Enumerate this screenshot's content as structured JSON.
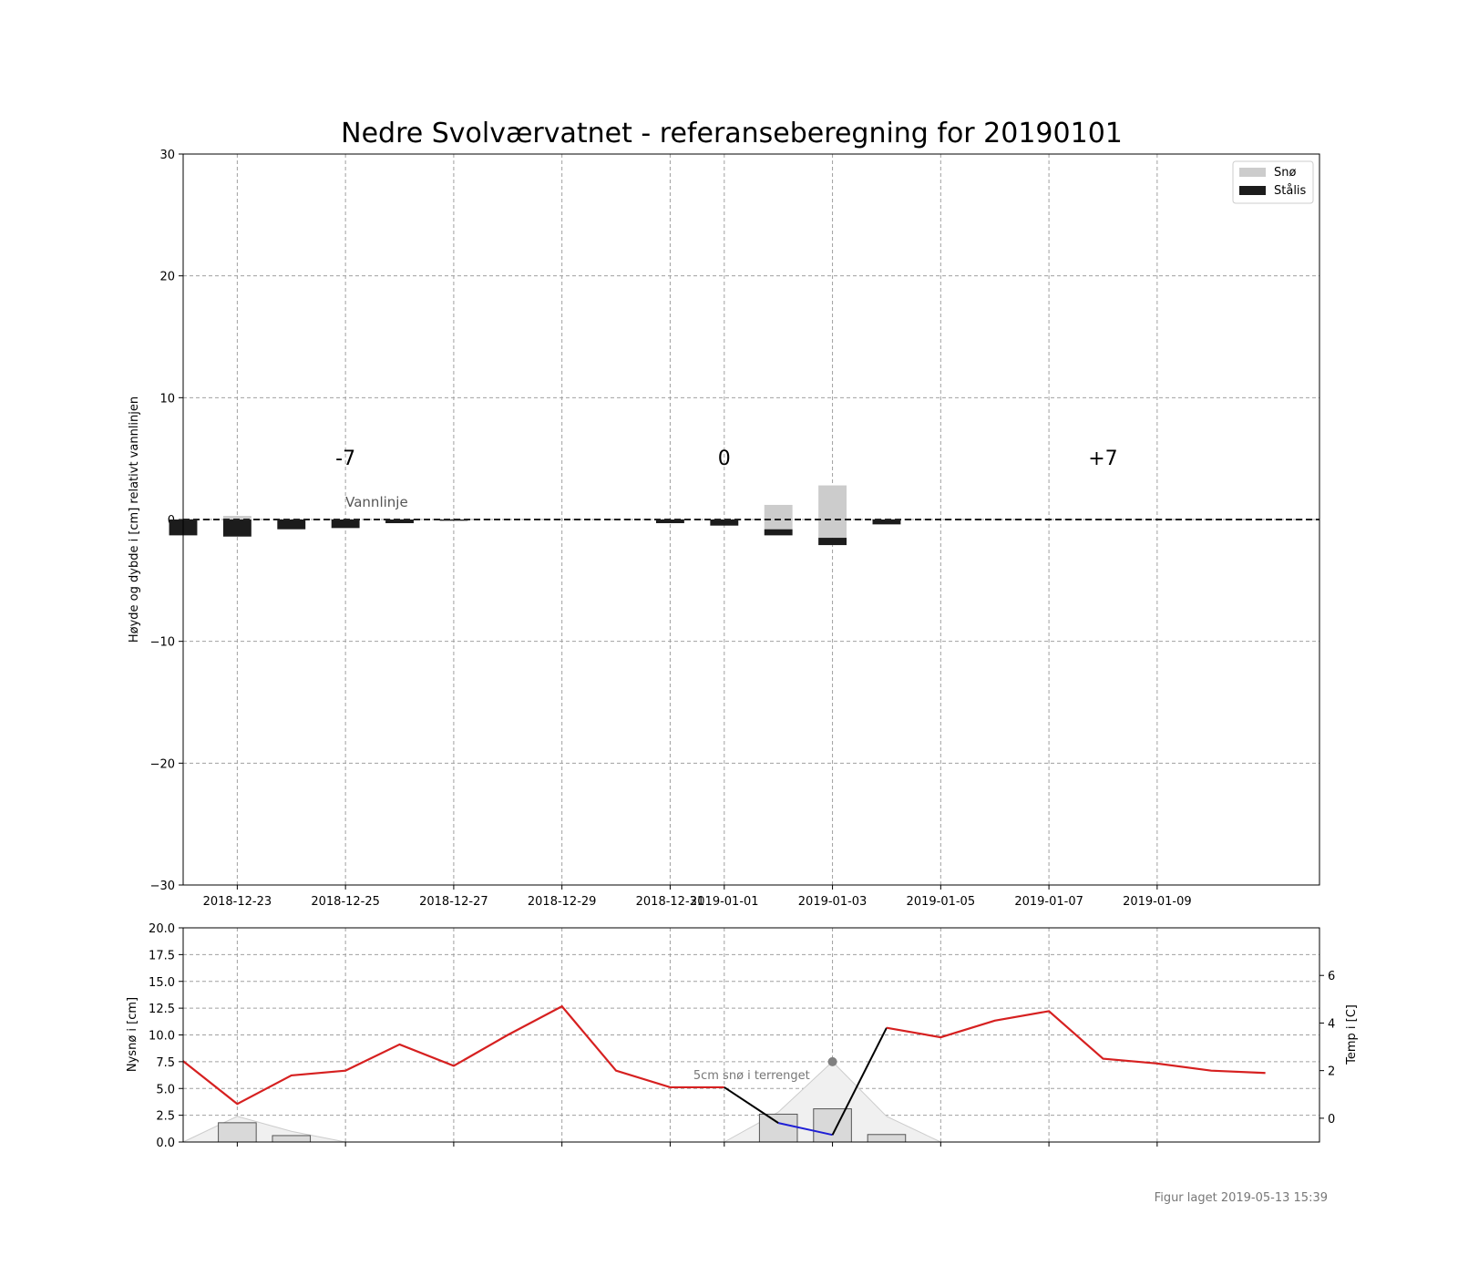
{
  "title": "Nedre Svolværvatnet - referanseberegning for 20190101",
  "footer": "Figur laget 2019-05-13 15:39",
  "colors": {
    "snow": "#cccccc",
    "ice": "#1c1c1c",
    "temp_line": "#d62020",
    "snow_line_black": "#000000",
    "snow_line_blue": "#1f1fd6",
    "grid": "#a0a0a0",
    "annotation": "#777777"
  },
  "chart_data": [
    {
      "type": "bar",
      "ylabel": "Høyde og dybde i [cm] relativt vannlinjen",
      "ylim": [
        -30,
        30
      ],
      "yticks": [
        "30",
        "20",
        "10",
        "0",
        "−10",
        "−20",
        "−30"
      ],
      "ytick_values": [
        30,
        20,
        10,
        0,
        -10,
        -20,
        -30
      ],
      "xlim_days": "2018-12-22 .. 2019-01-11",
      "xtick_labels": [
        "2018-12-23",
        "2018-12-25",
        "2018-12-27",
        "2018-12-29",
        "2018-12-31",
        "2019-01-01",
        "2019-01-03",
        "2019-01-05",
        "2019-01-07",
        "2019-01-09"
      ],
      "xtick_dates": [
        "2018-12-23",
        "2018-12-25",
        "2018-12-27",
        "2018-12-29",
        "2018-12-31",
        "2019-01-01",
        "2019-01-03",
        "2019-01-05",
        "2019-01-07",
        "2019-01-09"
      ],
      "legend": {
        "placement": "top-right",
        "entries": [
          {
            "name": "Snø",
            "color": "#cccccc"
          },
          {
            "name": "Stålis",
            "color": "#1c1c1c"
          }
        ]
      },
      "water_line_label": "Vannlinje",
      "day_markers": [
        {
          "label": "-7",
          "date": "2018-12-25"
        },
        {
          "label": "0",
          "date": "2019-01-01"
        },
        {
          "label": "+7",
          "date": "2019-01-08"
        }
      ],
      "bars": [
        {
          "date": "2018-12-22",
          "snow": 0.0,
          "ice": 1.3
        },
        {
          "date": "2018-12-23",
          "snow": 0.3,
          "ice": 1.4
        },
        {
          "date": "2018-12-24",
          "snow": 0.0,
          "ice": 0.8
        },
        {
          "date": "2018-12-25",
          "snow": 0.0,
          "ice": 0.7
        },
        {
          "date": "2018-12-26",
          "snow": 0.0,
          "ice": 0.3
        },
        {
          "date": "2018-12-27",
          "snow": 0.0,
          "ice": 0.1
        },
        {
          "date": "2018-12-31",
          "snow": 0.0,
          "ice": 0.3
        },
        {
          "date": "2019-01-01",
          "snow": 0.0,
          "ice": 0.5
        },
        {
          "date": "2019-01-02",
          "snow": 2.0,
          "ice": 0.5,
          "ice_top": -0.8
        },
        {
          "date": "2019-01-03",
          "snow": 4.3,
          "ice": 0.6,
          "ice_top": -1.5
        },
        {
          "date": "2019-01-04",
          "snow": 0.0,
          "ice": 0.4
        }
      ]
    },
    {
      "type": "line",
      "ylabel": "Nysnø i [cm]",
      "ylabel_right": "Temp i [C]",
      "ylim": [
        0,
        20
      ],
      "yticks": [
        "20.0",
        "17.5",
        "15.0",
        "12.5",
        "10.0",
        "7.5",
        "5.0",
        "2.5",
        "0.0"
      ],
      "ytick_values": [
        20,
        17.5,
        15,
        12.5,
        10,
        7.5,
        5,
        2.5,
        0
      ],
      "ylim_right": [
        -1,
        8
      ],
      "yticks_right": [
        "6",
        "4",
        "2",
        "0"
      ],
      "ytick_values_right": [
        6,
        4,
        2,
        0
      ],
      "annotation": {
        "text": "5cm snø i terrenget",
        "date": "2019-01-03",
        "value": 7.5
      },
      "new_snow_bars": [
        {
          "date": "2018-12-23",
          "value": 1.8
        },
        {
          "date": "2018-12-24",
          "value": 0.6
        },
        {
          "date": "2019-01-02",
          "value": 2.6
        },
        {
          "date": "2019-01-03",
          "value": 3.1
        },
        {
          "date": "2019-01-04",
          "value": 0.7
        }
      ],
      "snow_depth_area": [
        {
          "date": "2018-12-22",
          "value": 0.0
        },
        {
          "date": "2018-12-23",
          "value": 2.4
        },
        {
          "date": "2018-12-24",
          "value": 1.0
        },
        {
          "date": "2018-12-25",
          "value": 0.0
        },
        {
          "date": "2019-01-01",
          "value": 0.0
        },
        {
          "date": "2019-01-02",
          "value": 2.8
        },
        {
          "date": "2019-01-03",
          "value": 7.5
        },
        {
          "date": "2019-01-04",
          "value": 2.4
        },
        {
          "date": "2019-01-05",
          "value": 0.0
        }
      ],
      "series": [
        {
          "name": "Temp",
          "axis": "right",
          "points": [
            {
              "date": "2018-12-22",
              "value": 2.4
            },
            {
              "date": "2018-12-23",
              "value": 0.6
            },
            {
              "date": "2018-12-24",
              "value": 1.8
            },
            {
              "date": "2018-12-25",
              "value": 2.0
            },
            {
              "date": "2018-12-26",
              "value": 3.1
            },
            {
              "date": "2018-12-27",
              "value": 2.2
            },
            {
              "date": "2018-12-28",
              "value": 3.5
            },
            {
              "date": "2018-12-29",
              "value": 4.7
            },
            {
              "date": "2018-12-30",
              "value": 2.0
            },
            {
              "date": "2018-12-31",
              "value": 1.3
            },
            {
              "date": "2019-01-01",
              "value": 1.3
            }
          ]
        },
        {
          "name": "Temp",
          "axis": "right",
          "points": [
            {
              "date": "2019-01-01",
              "value": 1.3
            },
            {
              "date": "2019-01-02",
              "value": -0.2
            },
            {
              "date": "2019-01-03",
              "value": -0.7
            },
            {
              "date": "2019-01-04",
              "value": 3.8
            }
          ],
          "segment_colors": [
            "#000000",
            "#1f1fd6",
            "#000000"
          ]
        },
        {
          "name": "Temp",
          "axis": "right",
          "points": [
            {
              "date": "2019-01-04",
              "value": 3.8
            },
            {
              "date": "2019-01-05",
              "value": 3.4
            },
            {
              "date": "2019-01-06",
              "value": 4.1
            },
            {
              "date": "2019-01-07",
              "value": 4.5
            },
            {
              "date": "2019-01-08",
              "value": 2.5
            },
            {
              "date": "2019-01-09",
              "value": 2.3
            },
            {
              "date": "2019-01-10",
              "value": 2.0
            },
            {
              "date": "2019-01-11",
              "value": 1.9
            }
          ]
        }
      ]
    }
  ]
}
